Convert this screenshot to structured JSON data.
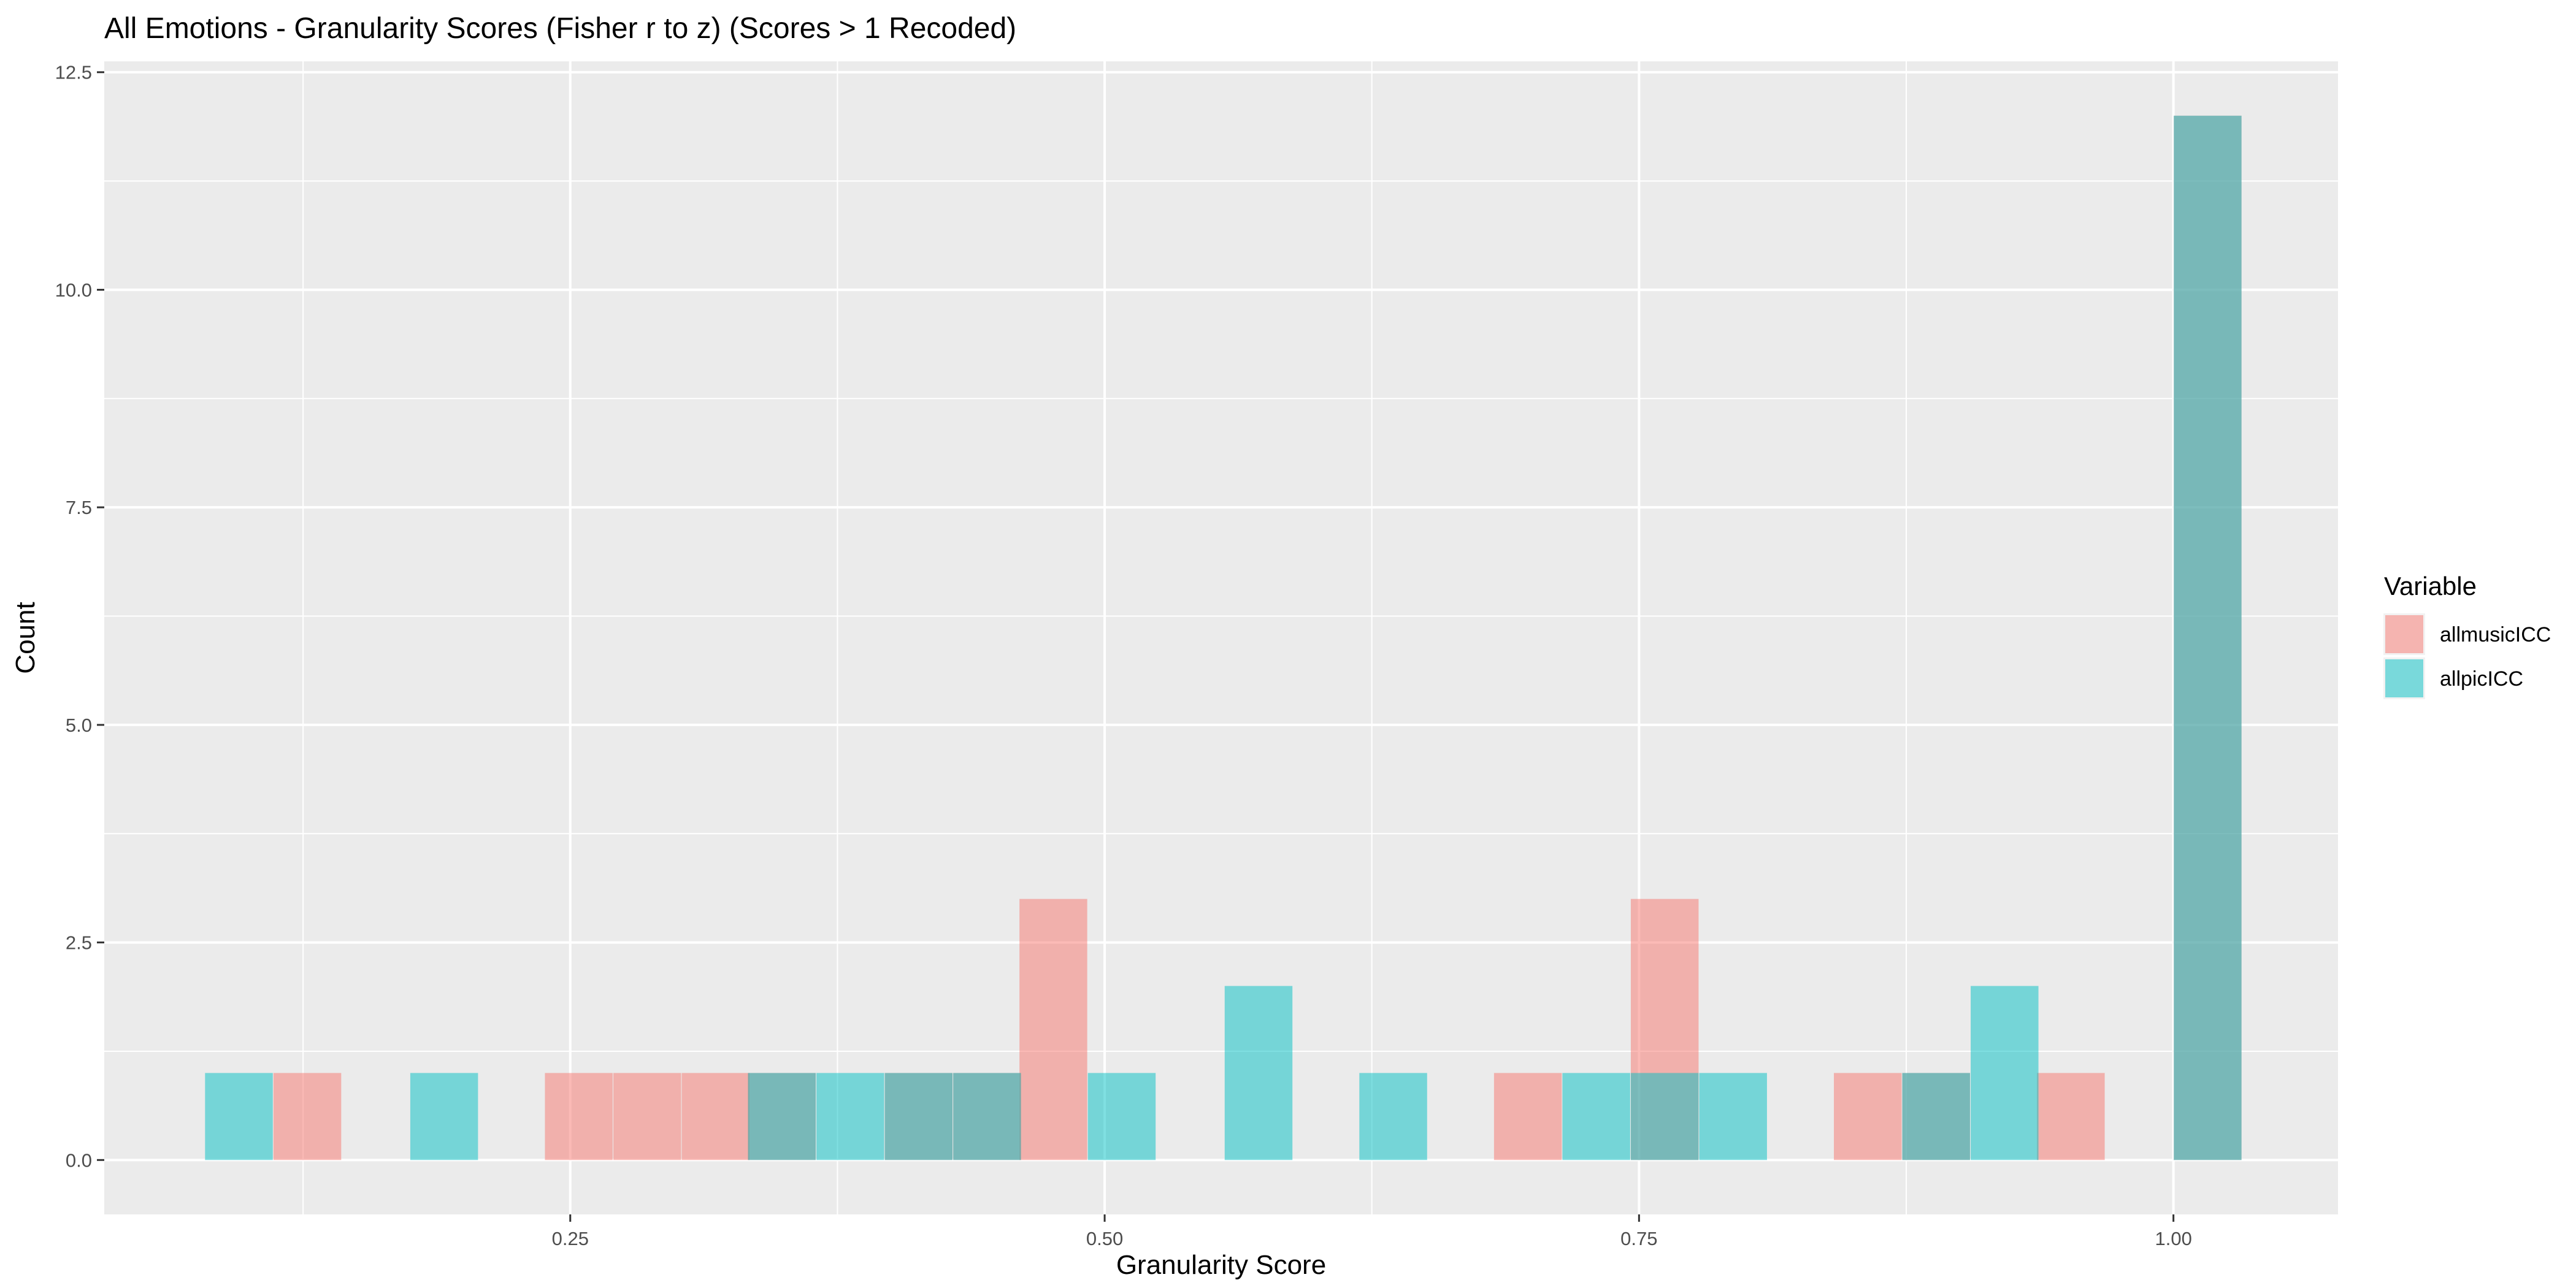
{
  "chart_data": {
    "type": "bar",
    "title": "All Emotions - Granularity Scores (Fisher r to z) (Scores > 1 Recoded)",
    "xlabel": "Granularity Score",
    "ylabel": "Count",
    "xlim": [
      0.032,
      1.077
    ],
    "ylim": [
      -0.625,
      12.625
    ],
    "x_ticks": [
      {
        "value": 0.25,
        "label": "0.25"
      },
      {
        "value": 0.5,
        "label": "0.50"
      },
      {
        "value": 0.75,
        "label": "0.75"
      },
      {
        "value": 1.0,
        "label": "1.00"
      }
    ],
    "y_ticks": [
      {
        "value": 0,
        "label": "0.0"
      },
      {
        "value": 2.5,
        "label": "2.5"
      },
      {
        "value": 5,
        "label": "5.0"
      },
      {
        "value": 7.5,
        "label": "7.5"
      },
      {
        "value": 10,
        "label": "10.0"
      },
      {
        "value": 12.5,
        "label": "12.5"
      }
    ],
    "grid": true,
    "legend": {
      "title": "Variable",
      "position": "right"
    },
    "bin_width": 0.0317,
    "series": [
      {
        "name": "allmusicICC",
        "color": "#F8766D",
        "bins": [
          {
            "x": 0.127,
            "count": 1
          },
          {
            "x": 0.254,
            "count": 1
          },
          {
            "x": 0.286,
            "count": 1
          },
          {
            "x": 0.318,
            "count": 1
          },
          {
            "x": 0.349,
            "count": 1
          },
          {
            "x": 0.413,
            "count": 1
          },
          {
            "x": 0.445,
            "count": 1
          },
          {
            "x": 0.476,
            "count": 3
          },
          {
            "x": 0.698,
            "count": 1
          },
          {
            "x": 0.762,
            "count": 3
          },
          {
            "x": 0.857,
            "count": 1
          },
          {
            "x": 0.889,
            "count": 1
          },
          {
            "x": 0.952,
            "count": 1
          },
          {
            "x": 1.016,
            "count": 12
          }
        ]
      },
      {
        "name": "allpicICC",
        "color": "#00BFC4",
        "bins": [
          {
            "x": 0.095,
            "count": 1
          },
          {
            "x": 0.191,
            "count": 1
          },
          {
            "x": 0.349,
            "count": 1
          },
          {
            "x": 0.381,
            "count": 1
          },
          {
            "x": 0.413,
            "count": 1
          },
          {
            "x": 0.445,
            "count": 1
          },
          {
            "x": 0.508,
            "count": 1
          },
          {
            "x": 0.572,
            "count": 2
          },
          {
            "x": 0.635,
            "count": 1
          },
          {
            "x": 0.73,
            "count": 1
          },
          {
            "x": 0.762,
            "count": 1
          },
          {
            "x": 0.794,
            "count": 1
          },
          {
            "x": 0.889,
            "count": 1
          },
          {
            "x": 0.921,
            "count": 2
          },
          {
            "x": 1.016,
            "count": 12
          }
        ]
      }
    ]
  }
}
